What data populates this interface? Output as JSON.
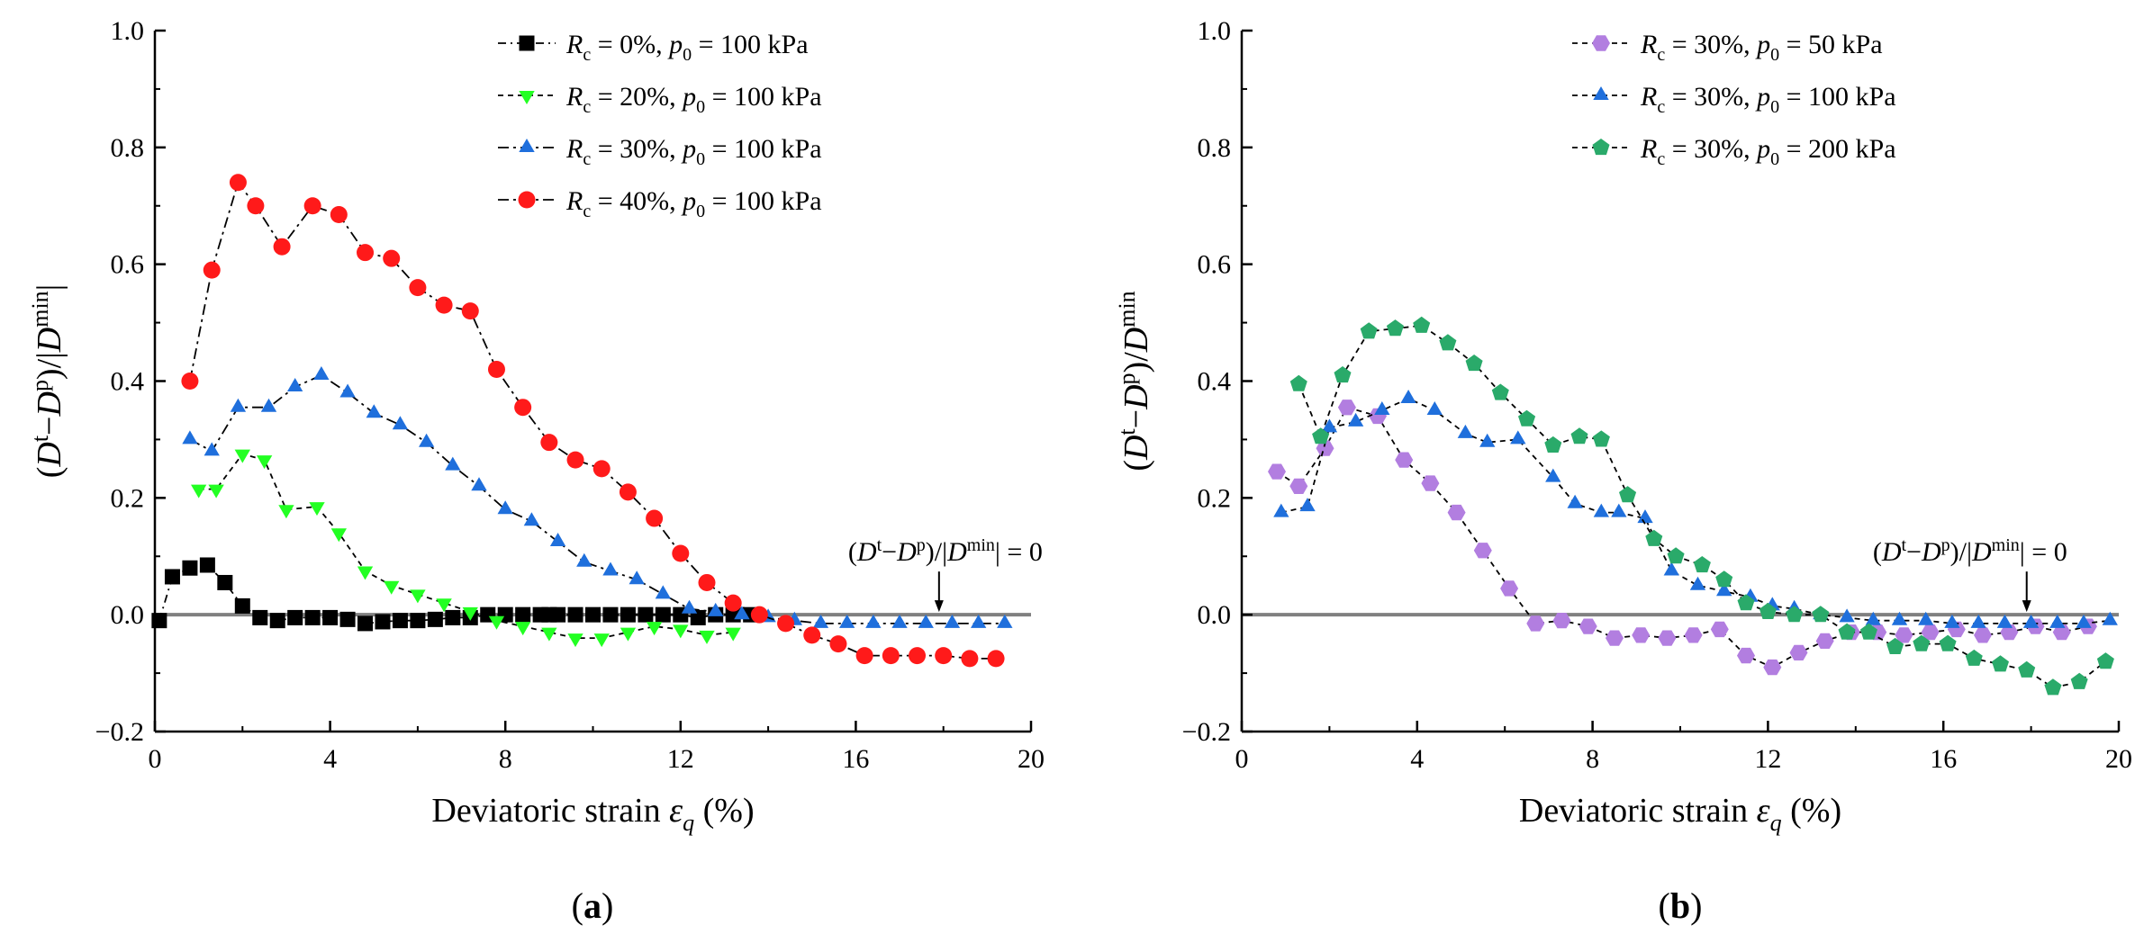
{
  "colors": {
    "black": "#000000",
    "green": "#22ff22",
    "blue": "#1f6fdc",
    "red": "#ff1a1a",
    "purple": "#b27ee0",
    "teal": "#2aaa6a",
    "zero_line": "#808080"
  },
  "chart_data": [
    {
      "type": "line",
      "panel_label": "(a)",
      "xlabel": "Deviatoric strain εq (%)",
      "ylabel": "(Dt−Dp)/|Dmin|",
      "xlim": [
        0,
        20
      ],
      "ylim": [
        -0.2,
        1.0
      ],
      "xticks": [
        "0",
        "4",
        "8",
        "12",
        "16",
        "20"
      ],
      "yticks": [
        "−0.2",
        "0.0",
        "0.2",
        "0.4",
        "0.6",
        "0.8",
        "1.0"
      ],
      "annotation": {
        "text": "(Dt−Dp)/|Dmin| = 0",
        "x": 17.9,
        "y": 0
      },
      "series": [
        {
          "name": "Rc = 0%, p0 = 100 kPa",
          "marker": "square",
          "color_key": "black",
          "dash": "9,5,2,5",
          "x": [
            0.1,
            0.4,
            0.8,
            1.2,
            1.6,
            2.0,
            2.4,
            2.8,
            3.2,
            3.6,
            4.0,
            4.4,
            4.8,
            5.2,
            5.6,
            6.0,
            6.4,
            6.8,
            7.2,
            7.6,
            8.0,
            8.4,
            8.8,
            9.0,
            9.2,
            9.6,
            10.0,
            10.4,
            10.8,
            11.2,
            11.6,
            12.0,
            12.4,
            12.8,
            13.2,
            13.6
          ],
          "y": [
            -0.01,
            0.065,
            0.08,
            0.085,
            0.055,
            0.015,
            -0.005,
            -0.01,
            -0.005,
            -0.005,
            -0.005,
            -0.008,
            -0.015,
            -0.012,
            -0.01,
            -0.01,
            -0.008,
            -0.005,
            -0.005,
            0.0,
            0.0,
            0.0,
            0.0,
            0.0,
            0.0,
            0.0,
            0.0,
            0.0,
            0.0,
            0.0,
            0.0,
            0.0,
            -0.005,
            0.0,
            0.0,
            0.0
          ]
        },
        {
          "name": "Rc = 20%, p0 = 100 kPa",
          "marker": "triangle-down",
          "color_key": "green",
          "dash": "6,5",
          "x": [
            1.0,
            1.4,
            2.0,
            2.5,
            3.0,
            3.7,
            4.2,
            4.8,
            5.4,
            6.0,
            6.6,
            7.2,
            7.8,
            8.4,
            9.0,
            9.6,
            10.2,
            10.8,
            11.4,
            12.0,
            12.6,
            13.2
          ],
          "y": [
            0.215,
            0.215,
            0.275,
            0.265,
            0.18,
            0.185,
            0.14,
            0.075,
            0.05,
            0.035,
            0.02,
            0.005,
            -0.01,
            -0.02,
            -0.03,
            -0.04,
            -0.04,
            -0.03,
            -0.02,
            -0.025,
            -0.035,
            -0.03
          ]
        },
        {
          "name": "Rc = 30%, p0 = 100 kPa",
          "marker": "triangle-up",
          "color_key": "blue",
          "dash": "12,5,3,5",
          "x": [
            0.8,
            1.3,
            1.9,
            2.6,
            3.2,
            3.8,
            4.4,
            5.0,
            5.6,
            6.2,
            6.8,
            7.4,
            8.0,
            8.6,
            9.2,
            9.8,
            10.4,
            11.0,
            11.6,
            12.2,
            12.8,
            13.4,
            14.0,
            14.6,
            15.2,
            15.8,
            16.4,
            17.0,
            17.6,
            18.2,
            18.8,
            19.4
          ],
          "y": [
            0.3,
            0.28,
            0.355,
            0.355,
            0.39,
            0.41,
            0.38,
            0.345,
            0.325,
            0.295,
            0.255,
            0.22,
            0.18,
            0.16,
            0.125,
            0.09,
            0.075,
            0.06,
            0.035,
            0.01,
            0.005,
            0.0,
            -0.005,
            -0.01,
            -0.015,
            -0.015,
            -0.015,
            -0.015,
            -0.015,
            -0.015,
            -0.015,
            -0.015
          ]
        },
        {
          "name": "Rc = 40%, p0 = 100 kPa",
          "marker": "circle",
          "color_key": "red",
          "dash": "12,5,3,5",
          "x": [
            0.8,
            1.3,
            1.9,
            2.3,
            2.9,
            3.6,
            4.2,
            4.8,
            5.4,
            6.0,
            6.6,
            7.2,
            7.8,
            8.4,
            9.0,
            9.6,
            10.2,
            10.8,
            11.4,
            12.0,
            12.6,
            13.2,
            13.8,
            14.4,
            15.0,
            15.6,
            16.2,
            16.8,
            17.4,
            18.0,
            18.6,
            19.2
          ],
          "y": [
            0.4,
            0.59,
            0.74,
            0.7,
            0.63,
            0.7,
            0.685,
            0.62,
            0.61,
            0.56,
            0.53,
            0.52,
            0.42,
            0.355,
            0.295,
            0.265,
            0.25,
            0.21,
            0.165,
            0.105,
            0.055,
            0.02,
            0.0,
            -0.015,
            -0.035,
            -0.05,
            -0.07,
            -0.07,
            -0.07,
            -0.07,
            -0.075,
            -0.075
          ]
        }
      ],
      "legend": "top-right"
    },
    {
      "type": "line",
      "panel_label": "(b)",
      "xlabel": "Deviatoric strain εq (%)",
      "ylabel": "(Dt−Dp)/Dmin",
      "xlim": [
        0,
        20
      ],
      "ylim": [
        -0.2,
        1.0
      ],
      "xticks": [
        "0",
        "4",
        "8",
        "12",
        "16",
        "20"
      ],
      "yticks": [
        "−0.2",
        "0.0",
        "0.2",
        "0.4",
        "0.6",
        "0.8",
        "1.0"
      ],
      "annotation": {
        "text": "(Dt−Dp)/|Dmin| = 0",
        "x": 17.9,
        "y": 0
      },
      "series": [
        {
          "name": "Rc = 30%, p0 = 50 kPa",
          "marker": "hexagon",
          "color_key": "purple",
          "dash": "6,5",
          "x": [
            0.8,
            1.3,
            1.9,
            2.4,
            3.1,
            3.7,
            4.3,
            4.9,
            5.5,
            6.1,
            6.7,
            7.3,
            7.9,
            8.5,
            9.1,
            9.7,
            10.3,
            10.9,
            11.5,
            12.1,
            12.7,
            13.3,
            13.9,
            14.5,
            15.1,
            15.7,
            16.3,
            16.9,
            17.5,
            18.1,
            18.7,
            19.3
          ],
          "y": [
            0.245,
            0.22,
            0.285,
            0.355,
            0.34,
            0.265,
            0.225,
            0.175,
            0.11,
            0.045,
            -0.015,
            -0.01,
            -0.02,
            -0.04,
            -0.035,
            -0.04,
            -0.035,
            -0.025,
            -0.07,
            -0.09,
            -0.065,
            -0.045,
            -0.03,
            -0.03,
            -0.035,
            -0.03,
            -0.025,
            -0.035,
            -0.03,
            -0.02,
            -0.03,
            -0.02
          ]
        },
        {
          "name": "Rc = 30%, p0 = 100 kPa",
          "marker": "triangle-up",
          "color_key": "blue",
          "dash": "6,5",
          "x": [
            0.9,
            1.5,
            2.0,
            2.6,
            3.2,
            3.8,
            4.4,
            5.1,
            5.6,
            6.3,
            7.1,
            7.6,
            8.2,
            8.6,
            9.2,
            9.8,
            10.4,
            11.0,
            11.6,
            12.1,
            12.6,
            13.2,
            13.8,
            14.4,
            15.0,
            15.6,
            16.2,
            16.8,
            17.4,
            18.0,
            18.6,
            19.2,
            19.8
          ],
          "y": [
            0.175,
            0.185,
            0.32,
            0.33,
            0.35,
            0.37,
            0.35,
            0.31,
            0.295,
            0.3,
            0.235,
            0.19,
            0.175,
            0.175,
            0.165,
            0.075,
            0.05,
            0.04,
            0.03,
            0.015,
            0.01,
            0.0,
            -0.005,
            -0.01,
            -0.01,
            -0.01,
            -0.015,
            -0.015,
            -0.015,
            -0.015,
            -0.015,
            -0.015,
            -0.01
          ]
        },
        {
          "name": "Rc = 30%, p0 = 200 kPa",
          "marker": "pentagon",
          "color_key": "teal",
          "dash": "6,5",
          "x": [
            1.3,
            1.8,
            2.3,
            2.9,
            3.5,
            4.1,
            4.7,
            5.3,
            5.9,
            6.5,
            7.1,
            7.7,
            8.2,
            8.8,
            9.4,
            9.9,
            10.5,
            11.0,
            11.5,
            12.0,
            12.6,
            13.2,
            13.8,
            14.3,
            14.9,
            15.5,
            16.1,
            16.7,
            17.3,
            17.9,
            18.5,
            19.1,
            19.7
          ],
          "y": [
            0.395,
            0.305,
            0.41,
            0.485,
            0.49,
            0.495,
            0.465,
            0.43,
            0.38,
            0.335,
            0.29,
            0.305,
            0.3,
            0.205,
            0.13,
            0.1,
            0.085,
            0.06,
            0.02,
            0.005,
            0.0,
            0.0,
            -0.03,
            -0.03,
            -0.055,
            -0.05,
            -0.05,
            -0.075,
            -0.085,
            -0.095,
            -0.125,
            -0.115,
            -0.08
          ]
        }
      ],
      "legend": "top-right"
    }
  ]
}
